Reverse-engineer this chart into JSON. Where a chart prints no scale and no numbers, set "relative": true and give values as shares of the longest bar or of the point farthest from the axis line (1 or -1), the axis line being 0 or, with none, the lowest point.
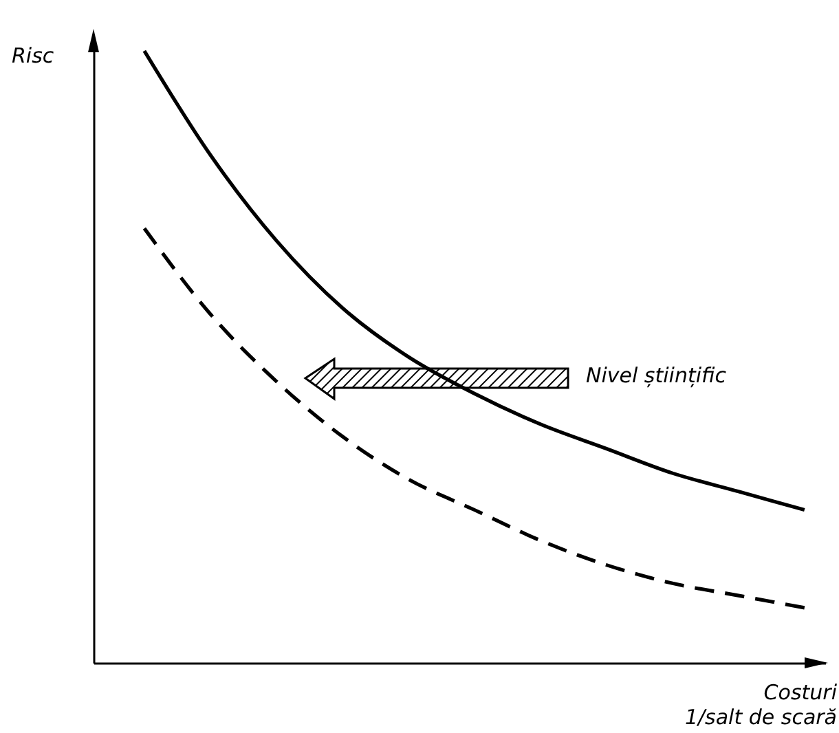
{
  "chart_data": {
    "type": "line",
    "relative": true,
    "xlabel": "Costuri 1/salt de scară",
    "ylabel": "Risc",
    "annotations": [
      "Nivel științific"
    ],
    "categories": [
      null,
      null,
      null,
      null,
      null,
      null,
      null,
      null,
      null,
      null,
      null
    ],
    "series": [
      {
        "color": "#000000",
        "line_style": "solid",
        "values": [
          1,
          0.83,
          0.69,
          0.58,
          0.5,
          0.44,
          0.39,
          0.35,
          0.31,
          0.28,
          0.25
        ]
      },
      {
        "color": "#000000",
        "line_style": "dashed",
        "values": [
          0.71,
          0.57,
          0.46,
          0.37,
          0.3,
          0.25,
          0.2,
          0.16,
          0.13,
          0.11,
          0.09
        ]
      }
    ]
  }
}
